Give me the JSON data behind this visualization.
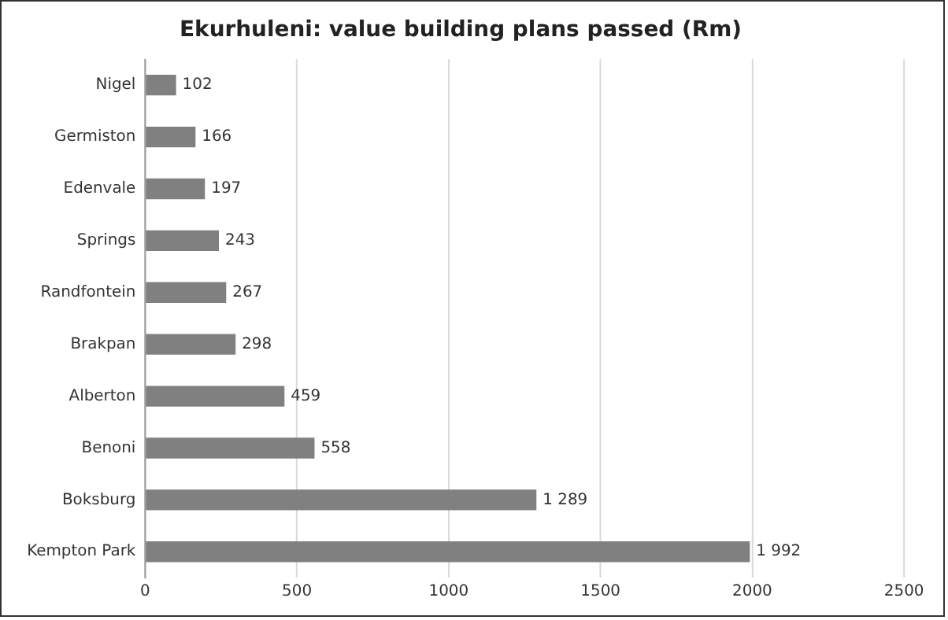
{
  "chart_data": {
    "type": "bar",
    "orientation": "horizontal",
    "title": "Ekurhuleni: value building plans passed (Rm)",
    "categories": [
      "Nigel",
      "Germiston",
      "Edenvale",
      "Springs",
      "Randfontein",
      "Brakpan",
      "Alberton",
      "Benoni",
      "Boksburg",
      "Kempton Park"
    ],
    "values": [
      102,
      166,
      197,
      243,
      267,
      298,
      459,
      558,
      1289,
      1992
    ],
    "value_labels": [
      "102",
      "166",
      "197",
      "243",
      "267",
      "298",
      "459",
      "558",
      "1 289",
      "1 992"
    ],
    "color": "#808080",
    "xlim": [
      0,
      2500
    ],
    "xticks": [
      0,
      500,
      1000,
      1500,
      2000,
      2500
    ],
    "grid": "x",
    "legend": false
  }
}
